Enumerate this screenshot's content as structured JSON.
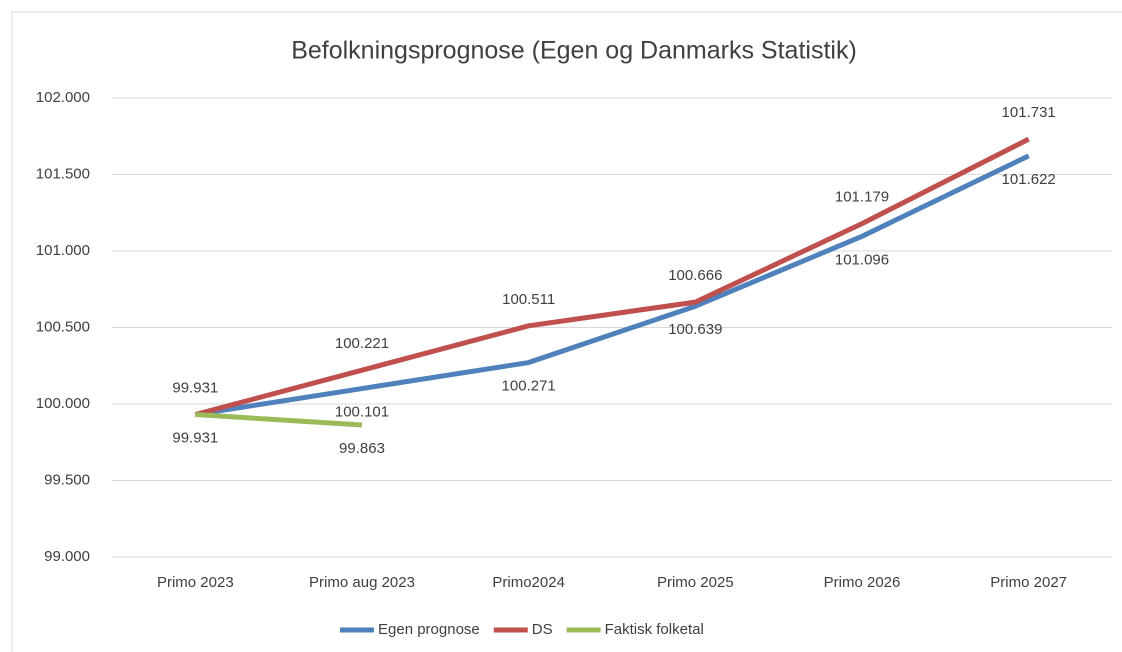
{
  "chart_data": {
    "type": "line",
    "title": "Befolkningsprognose  (Egen og Danmarks Statistik)",
    "categories": [
      "Primo 2023",
      "Primo aug 2023",
      "Primo2024",
      "Primo 2025",
      "Primo 2026",
      "Primo 2027"
    ],
    "series": [
      {
        "name": "Egen prognose",
        "color": "#4f81bd",
        "values": [
          99931,
          100101,
          100271,
          100639,
          101096,
          101622
        ],
        "value_labels": [
          "99.931",
          "100.101",
          "100.271",
          "100.639",
          "101.096",
          "101.622"
        ]
      },
      {
        "name": "DS",
        "color": "#c0504d",
        "values": [
          99931,
          100221,
          100511,
          100666,
          101179,
          101731
        ],
        "value_labels": [
          "99.931",
          "100.221",
          "100.511",
          "100.666",
          "101.179",
          "101.731"
        ]
      },
      {
        "name": "Faktisk folketal",
        "color": "#9bbb59",
        "values": [
          99931,
          99863,
          null,
          null,
          null,
          null
        ],
        "value_labels": [
          null,
          "99.863",
          null,
          null,
          null,
          null
        ]
      }
    ],
    "ylim": [
      99000,
      102000
    ],
    "yticks": [
      {
        "value": 99000,
        "label": "99.000"
      },
      {
        "value": 99500,
        "label": "99.500"
      },
      {
        "value": 100000,
        "label": "100.000"
      },
      {
        "value": 100500,
        "label": "100.500"
      },
      {
        "value": 101000,
        "label": "101.000"
      },
      {
        "value": 101500,
        "label": "101.500"
      },
      {
        "value": 102000,
        "label": "102.000"
      }
    ],
    "grid": true,
    "legend": "bottom"
  }
}
